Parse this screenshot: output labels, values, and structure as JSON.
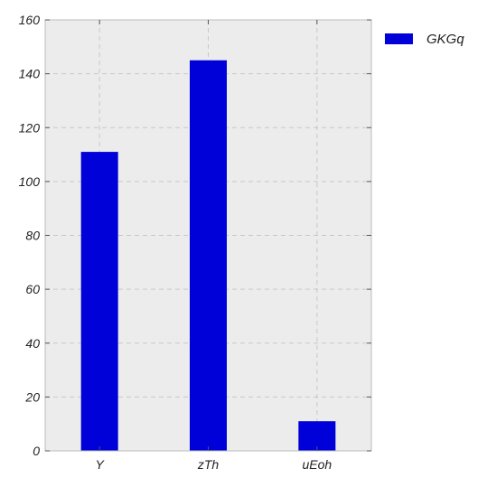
{
  "chart_data": {
    "type": "bar",
    "categories": [
      "Y",
      "zTh",
      "uEoh"
    ],
    "series": [
      {
        "name": "GKGq",
        "values": [
          111,
          145,
          11
        ],
        "color": "#0000d9"
      }
    ],
    "ylim": [
      0,
      160
    ],
    "yticks": [
      0,
      20,
      40,
      60,
      80,
      100,
      120,
      140,
      160
    ],
    "grid": true,
    "legend": "top-right, outside plot",
    "colors": {
      "plot_background": "#ececec",
      "grid": "#c8c8c8",
      "axes": "#bbbbbb",
      "bar": "#0000d9"
    }
  }
}
